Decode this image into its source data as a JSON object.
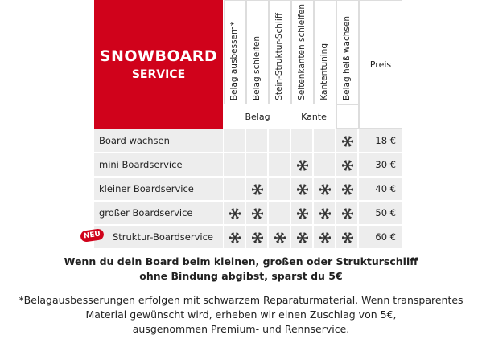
{
  "header": {
    "title": "SNOWBOARD",
    "subtitle": "SERVICE"
  },
  "columns": [
    "Belag ausbessern*",
    "Belag schleifen",
    "Stein-Struktur-Schliff",
    "Seitenkanten schleifen",
    "Kantentuning",
    "Belag heiß wachsen"
  ],
  "price_header": "Preis",
  "groups": [
    "Belag",
    "Kante"
  ],
  "rows": [
    {
      "name": "Board wachsen",
      "marks": [
        false,
        false,
        false,
        false,
        false,
        true
      ],
      "price": "18 €"
    },
    {
      "name": "mini Boardservice",
      "marks": [
        false,
        false,
        false,
        true,
        false,
        true
      ],
      "price": "30 €"
    },
    {
      "name": "kleiner Boardservice",
      "marks": [
        false,
        true,
        false,
        true,
        true,
        true
      ],
      "price": "40 €"
    },
    {
      "name": "großer Boardservice",
      "marks": [
        true,
        true,
        false,
        true,
        true,
        true
      ],
      "price": "50 €"
    },
    {
      "name": "Struktur-Boardservice",
      "marks": [
        true,
        true,
        true,
        true,
        true,
        true
      ],
      "price": "60 €",
      "badge": "NEU"
    }
  ],
  "notice": [
    "Wenn du dein Board beim kleinen, großen oder Strukturschliff",
    "ohne Bindung abgibst, sparst du 5€"
  ],
  "footnote": [
    "*Belagausbesserungen erfolgen mit schwarzem Reparaturmaterial. Wenn transparentes",
    "Material gewünscht wird, erheben wir einen Zuschlag von 5€,",
    "ausgenommen Premium- und Rennservice."
  ]
}
